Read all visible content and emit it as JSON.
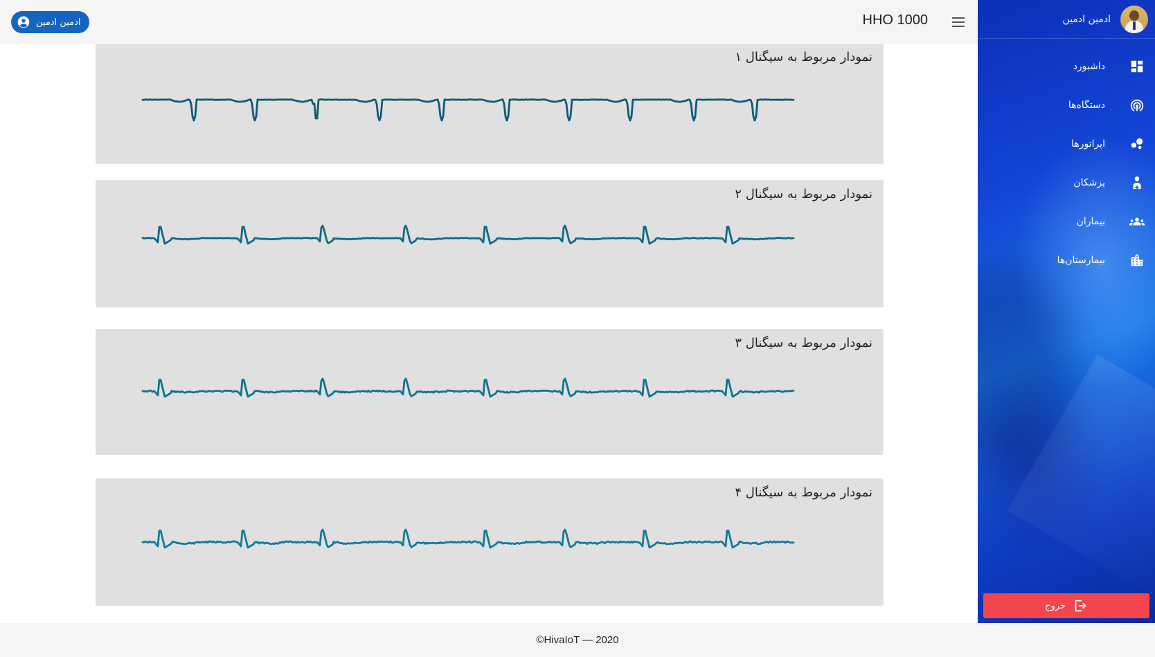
{
  "appbar": {
    "title": "HHO 1000",
    "user_chip": "ادمین ادمین",
    "menu_icon": "menu-icon"
  },
  "sidebar": {
    "user_name": "ادمین ادمین",
    "items": [
      {
        "label": "داشبورد",
        "icon": "dashboard-icon"
      },
      {
        "label": "دستگاه‌ها",
        "icon": "devices-icon"
      },
      {
        "label": "اپراتورها",
        "icon": "operators-icon"
      },
      {
        "label": "پزشکان",
        "icon": "doctor-icon"
      },
      {
        "label": "بیماران",
        "icon": "patients-icon"
      },
      {
        "label": "بیمارستان‌ها",
        "icon": "hospital-icon"
      }
    ],
    "logout_label": "خروج"
  },
  "cards": [
    {
      "title": "نمودار مربوط به سیگنال ۱",
      "color": "#0e5a72"
    },
    {
      "title": "نمودار مربوط به سیگنال ۲",
      "color": "#0f6a84"
    },
    {
      "title": "نمودار مربوط به سیگنال ۳",
      "color": "#11728f"
    },
    {
      "title": "نمودار مربوط به سیگنال ۴",
      "color": "#137a96"
    }
  ],
  "footer": {
    "text": "©HivaIoT — 2020"
  },
  "colors": {
    "sidebar": "#1346d6",
    "logout": "#f2454e",
    "chip": "#1565c0",
    "card": "#e0e0e0"
  }
}
